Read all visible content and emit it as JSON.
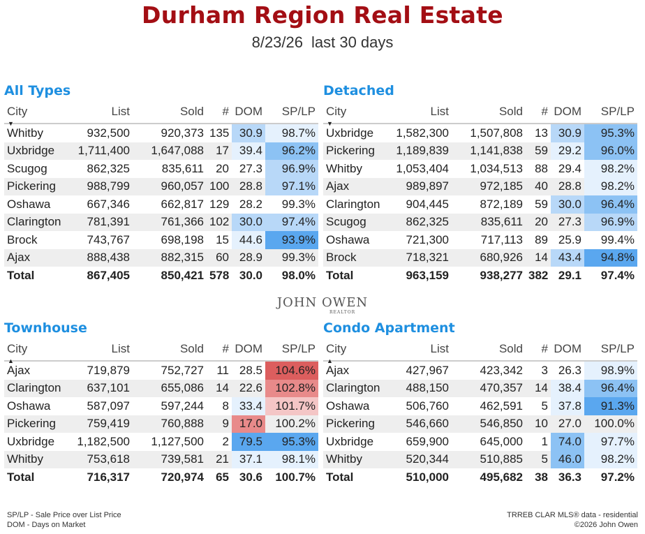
{
  "header": {
    "title": "Durham Region Real Estate",
    "date": "8/23/26",
    "period": "last 30 days"
  },
  "columns": {
    "city": "City",
    "list": "List",
    "sold": "Sold",
    "count": "#",
    "dom": "DOM",
    "splp": "SP/LP"
  },
  "colors": {
    "title": "#a30e14",
    "section_title": "#1e8fe0",
    "blue_scale": [
      "#e5f1fd",
      "#b8d8f8",
      "#8cc2f4",
      "#5aa7ef"
    ],
    "red_scale": [
      "#f4c6c6",
      "#e88a8a",
      "#dc5e5e"
    ]
  },
  "panels": {
    "all_types": {
      "title": "All Types",
      "sort_indicator": "▼",
      "rows": [
        {
          "city": "Whitby",
          "list": "932,500",
          "sold": "920,373",
          "count": "135",
          "dom": "30.9",
          "splp": "98.7%",
          "dom_shade": "b2",
          "splp_shade": "b1"
        },
        {
          "city": "Uxbridge",
          "list": "1,711,400",
          "sold": "1,647,088",
          "count": "17",
          "dom": "39.4",
          "splp": "96.2%",
          "dom_shade": "b1",
          "splp_shade": "b3"
        },
        {
          "city": "Scugog",
          "list": "862,325",
          "sold": "835,611",
          "count": "20",
          "dom": "27.3",
          "splp": "96.9%",
          "dom_shade": "",
          "splp_shade": "b2"
        },
        {
          "city": "Pickering",
          "list": "988,799",
          "sold": "960,057",
          "count": "100",
          "dom": "28.8",
          "splp": "97.1%",
          "dom_shade": "",
          "splp_shade": "b2"
        },
        {
          "city": "Oshawa",
          "list": "667,346",
          "sold": "662,817",
          "count": "129",
          "dom": "28.2",
          "splp": "99.3%",
          "dom_shade": "",
          "splp_shade": ""
        },
        {
          "city": "Clarington",
          "list": "781,391",
          "sold": "761,366",
          "count": "102",
          "dom": "30.0",
          "splp": "97.4%",
          "dom_shade": "b2",
          "splp_shade": "b2"
        },
        {
          "city": "Brock",
          "list": "743,767",
          "sold": "698,198",
          "count": "15",
          "dom": "44.6",
          "splp": "93.9%",
          "dom_shade": "b1",
          "splp_shade": "b4"
        },
        {
          "city": "Ajax",
          "list": "888,438",
          "sold": "882,315",
          "count": "60",
          "dom": "28.9",
          "splp": "99.3%",
          "dom_shade": "",
          "splp_shade": ""
        }
      ],
      "total": {
        "city": "Total",
        "list": "867,405",
        "sold": "850,421",
        "count": "578",
        "dom": "30.0",
        "splp": "98.0%"
      }
    },
    "detached": {
      "title": "Detached",
      "sort_indicator": "▼",
      "rows": [
        {
          "city": "Uxbridge",
          "list": "1,582,300",
          "sold": "1,507,808",
          "count": "13",
          "dom": "30.9",
          "splp": "95.3%",
          "dom_shade": "b2",
          "splp_shade": "b3"
        },
        {
          "city": "Pickering",
          "list": "1,189,839",
          "sold": "1,141,838",
          "count": "59",
          "dom": "29.2",
          "splp": "96.0%",
          "dom_shade": "b1",
          "splp_shade": "b3"
        },
        {
          "city": "Whitby",
          "list": "1,053,404",
          "sold": "1,034,513",
          "count": "88",
          "dom": "29.4",
          "splp": "98.2%",
          "dom_shade": "",
          "splp_shade": "b1"
        },
        {
          "city": "Ajax",
          "list": "989,897",
          "sold": "972,185",
          "count": "40",
          "dom": "28.8",
          "splp": "98.2%",
          "dom_shade": "",
          "splp_shade": "b1"
        },
        {
          "city": "Clarington",
          "list": "904,445",
          "sold": "872,189",
          "count": "59",
          "dom": "30.0",
          "splp": "96.4%",
          "dom_shade": "b2",
          "splp_shade": "b3"
        },
        {
          "city": "Scugog",
          "list": "862,325",
          "sold": "835,611",
          "count": "20",
          "dom": "27.3",
          "splp": "96.9%",
          "dom_shade": "",
          "splp_shade": "b2"
        },
        {
          "city": "Oshawa",
          "list": "721,300",
          "sold": "717,113",
          "count": "89",
          "dom": "25.9",
          "splp": "99.4%",
          "dom_shade": "",
          "splp_shade": ""
        },
        {
          "city": "Brock",
          "list": "718,321",
          "sold": "680,926",
          "count": "14",
          "dom": "43.4",
          "splp": "94.8%",
          "dom_shade": "b2",
          "splp_shade": "b4"
        }
      ],
      "total": {
        "city": "Total",
        "list": "963,159",
        "sold": "938,277",
        "count": "382",
        "dom": "29.1",
        "splp": "97.4%"
      }
    },
    "townhouse": {
      "title": "Townhouse",
      "sort_indicator": "▲",
      "rows": [
        {
          "city": "Ajax",
          "list": "719,879",
          "sold": "752,727",
          "count": "11",
          "dom": "28.5",
          "splp": "104.6%",
          "dom_shade": "",
          "splp_shade": "r3"
        },
        {
          "city": "Clarington",
          "list": "637,101",
          "sold": "655,086",
          "count": "14",
          "dom": "22.6",
          "splp": "102.8%",
          "dom_shade": "",
          "splp_shade": "r2"
        },
        {
          "city": "Oshawa",
          "list": "587,097",
          "sold": "597,244",
          "count": "8",
          "dom": "33.4",
          "splp": "101.7%",
          "dom_shade": "b1",
          "splp_shade": "r1"
        },
        {
          "city": "Pickering",
          "list": "759,419",
          "sold": "760,888",
          "count": "9",
          "dom": "17.0",
          "splp": "100.2%",
          "dom_shade": "r2",
          "splp_shade": ""
        },
        {
          "city": "Uxbridge",
          "list": "1,182,500",
          "sold": "1,127,500",
          "count": "2",
          "dom": "79.5",
          "splp": "95.3%",
          "dom_shade": "b4",
          "splp_shade": "b4"
        },
        {
          "city": "Whitby",
          "list": "753,618",
          "sold": "739,581",
          "count": "21",
          "dom": "37.1",
          "splp": "98.1%",
          "dom_shade": "b1",
          "splp_shade": "b1"
        }
      ],
      "total": {
        "city": "Total",
        "list": "716,317",
        "sold": "720,974",
        "count": "65",
        "dom": "30.6",
        "splp": "100.7%"
      }
    },
    "condo": {
      "title": "Condo Apartment",
      "sort_indicator": "▲",
      "rows": [
        {
          "city": "Ajax",
          "list": "427,967",
          "sold": "423,342",
          "count": "3",
          "dom": "26.3",
          "splp": "98.9%",
          "dom_shade": "",
          "splp_shade": "b1"
        },
        {
          "city": "Clarington",
          "list": "488,150",
          "sold": "470,357",
          "count": "14",
          "dom": "38.4",
          "splp": "96.4%",
          "dom_shade": "b1",
          "splp_shade": "b3"
        },
        {
          "city": "Oshawa",
          "list": "506,760",
          "sold": "462,591",
          "count": "5",
          "dom": "37.8",
          "splp": "91.3%",
          "dom_shade": "b1",
          "splp_shade": "b4"
        },
        {
          "city": "Pickering",
          "list": "546,660",
          "sold": "546,850",
          "count": "10",
          "dom": "27.0",
          "splp": "100.0%",
          "dom_shade": "",
          "splp_shade": ""
        },
        {
          "city": "Uxbridge",
          "list": "659,900",
          "sold": "645,000",
          "count": "1",
          "dom": "74.0",
          "splp": "97.7%",
          "dom_shade": "b3",
          "splp_shade": "b1"
        },
        {
          "city": "Whitby",
          "list": "520,344",
          "sold": "510,885",
          "count": "5",
          "dom": "46.0",
          "splp": "98.2%",
          "dom_shade": "b3",
          "splp_shade": "b1"
        }
      ],
      "total": {
        "city": "Total",
        "list": "510,000",
        "sold": "495,682",
        "count": "38",
        "dom": "36.3",
        "splp": "97.2%"
      }
    }
  },
  "logo": {
    "name": "JOHN OWEN",
    "sub": "REALTOR"
  },
  "footer": {
    "legend_line1": "SP/LP - Sale Price over List Price",
    "legend_line2": "DOM - Days on Market",
    "source_line1": "TRREB CLAR MLS® data - residential",
    "source_line2": "©2026 John Owen"
  }
}
